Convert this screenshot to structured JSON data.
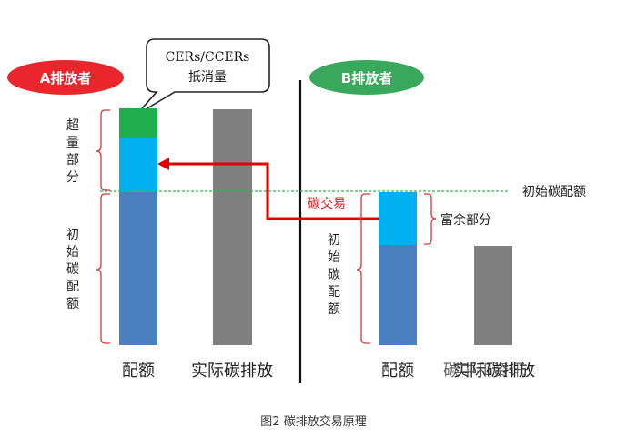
{
  "party_a": {
    "label": "A排放者",
    "color": "#e8262c"
  },
  "party_b": {
    "label": "B排放者",
    "color": "#3aa85c"
  },
  "callout": {
    "line1": "CERs/CCERs",
    "line2": "抵消量"
  },
  "labels": {
    "excess": [
      "超",
      "量",
      "部",
      "分"
    ],
    "initial_a": [
      "初",
      "始",
      "碳",
      "配",
      "额"
    ],
    "initial_b": [
      "初",
      "始",
      "碳",
      "配",
      "额"
    ],
    "initial_quota_line": "初始碳配额",
    "trade": "碳交易",
    "surplus": "富余部分"
  },
  "axis_labels": {
    "a_quota": "配额",
    "a_actual": "实际碳排放",
    "b_quota": "配额",
    "b_actual": "实际碳排放"
  },
  "watermark": "碳中和资讯",
  "caption": "图2  碳排放交易原理",
  "colors": {
    "quota_blue": "#4b80c0",
    "excess_cyan": "#00b0f0",
    "offset_green": "#1fae4b",
    "actual_gray": "#7f7f7f",
    "trade_red": "#e00000",
    "bracket_red": "#d23a3a",
    "dashed_green": "#2db84d"
  }
}
